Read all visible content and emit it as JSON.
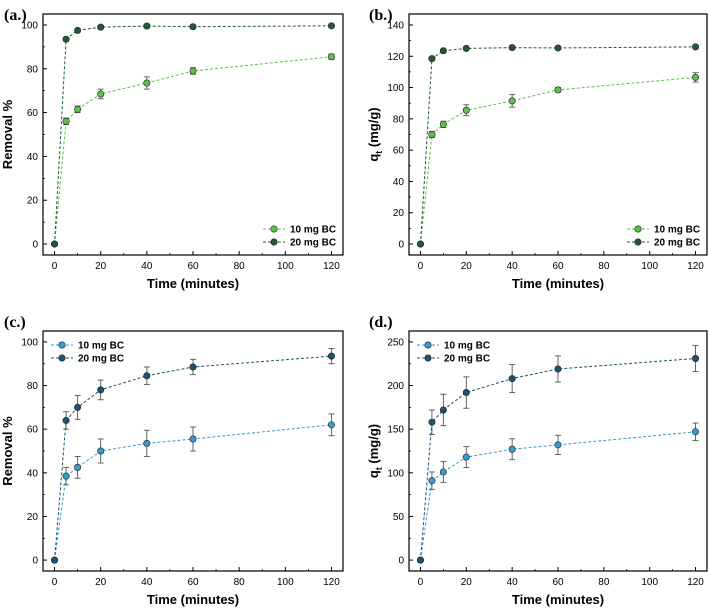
{
  "chart_data": [
    {
      "type": "line",
      "panel_label": "(a.)",
      "xlabel": "Time (minutes)",
      "ylabel": "Removal %",
      "xlim": [
        -5,
        125
      ],
      "ylim": [
        -5,
        105
      ],
      "xticks": [
        0,
        20,
        40,
        60,
        80,
        100,
        120
      ],
      "yticks": [
        0,
        20,
        40,
        60,
        80,
        100
      ],
      "legend_position": "bottom-right",
      "x": [
        0,
        5,
        10,
        20,
        40,
        60,
        120
      ],
      "series": [
        {
          "name": "10 mg BC",
          "color": "#5cc04a",
          "values": [
            0,
            56,
            61.5,
            68.5,
            73.5,
            79,
            85.5
          ],
          "errors": [
            0,
            1.5,
            1.5,
            2.2,
            2.8,
            1.5,
            1.2
          ]
        },
        {
          "name": "20 mg BC",
          "color": "#1f5a33",
          "values": [
            0,
            93.5,
            97.5,
            99,
            99.5,
            99.2,
            99.6
          ],
          "errors": [
            0,
            0.8,
            0.8,
            0.8,
            0.8,
            0.8,
            0.8
          ]
        }
      ]
    },
    {
      "type": "line",
      "panel_label": "(b.)",
      "xlabel": "Time (minutes)",
      "ylabel": "qt (mg/g)",
      "ylabel_main": "q",
      "ylabel_sub": "t",
      "ylabel_rest": " (mg/g)",
      "xlim": [
        -5,
        125
      ],
      "ylim": [
        -7,
        147
      ],
      "xticks": [
        0,
        20,
        40,
        60,
        80,
        100,
        120
      ],
      "yticks": [
        0,
        20,
        40,
        60,
        80,
        100,
        120,
        140
      ],
      "legend_position": "bottom-right",
      "x": [
        0,
        5,
        10,
        20,
        40,
        60,
        120
      ],
      "series": [
        {
          "name": "10 mg BC",
          "color": "#5cc04a",
          "values": [
            0,
            70,
            76.5,
            85.5,
            91.5,
            98.5,
            106.5
          ],
          "errors": [
            0,
            2,
            2,
            3.5,
            4,
            1.5,
            3
          ]
        },
        {
          "name": "20 mg BC",
          "color": "#1f5a33",
          "values": [
            0,
            118.5,
            123.5,
            125,
            125.5,
            125.3,
            126
          ],
          "errors": [
            0,
            1,
            1,
            1,
            1,
            1,
            1
          ]
        }
      ]
    },
    {
      "type": "line",
      "panel_label": "(c.)",
      "xlabel": "Time (minutes)",
      "ylabel": "Removal %",
      "xlim": [
        -5,
        125
      ],
      "ylim": [
        -5,
        105
      ],
      "xticks": [
        0,
        20,
        40,
        60,
        80,
        100,
        120
      ],
      "yticks": [
        0,
        20,
        40,
        60,
        80,
        100
      ],
      "legend_position": "top-left",
      "x": [
        0,
        5,
        10,
        20,
        40,
        60,
        120
      ],
      "series": [
        {
          "name": "10 mg BC",
          "color": "#3a9ad0",
          "values": [
            0,
            38.5,
            42.5,
            50,
            53.5,
            55.5,
            62
          ],
          "errors": [
            0,
            4,
            5,
            5.5,
            6,
            5.5,
            5
          ]
        },
        {
          "name": "20 mg BC",
          "color": "#1a5472",
          "values": [
            0,
            64,
            70,
            78,
            84.5,
            88.5,
            93.5
          ],
          "errors": [
            0,
            4,
            5.5,
            4.5,
            4,
            3.5,
            3.5
          ]
        }
      ]
    },
    {
      "type": "line",
      "panel_label": "(d.)",
      "xlabel": "Time (minutes)",
      "ylabel": "qt (mg/g)",
      "ylabel_main": "q",
      "ylabel_sub": "t",
      "ylabel_rest": " (mg/g)",
      "xlim": [
        -5,
        125
      ],
      "ylim": [
        -12.5,
        262.5
      ],
      "xticks": [
        0,
        20,
        40,
        60,
        80,
        100,
        120
      ],
      "yticks": [
        0,
        50,
        100,
        150,
        200,
        250
      ],
      "legend_position": "top-left",
      "x": [
        0,
        5,
        10,
        20,
        40,
        60,
        120
      ],
      "series": [
        {
          "name": "10 mg BC",
          "color": "#3a9ad0",
          "values": [
            0,
            91,
            101,
            118,
            127,
            132,
            147
          ],
          "errors": [
            0,
            10,
            12,
            12,
            12,
            11,
            10
          ]
        },
        {
          "name": "20 mg BC",
          "color": "#1a5472",
          "values": [
            0,
            158,
            172,
            192,
            208,
            219,
            231
          ],
          "errors": [
            0,
            14,
            18,
            18,
            16,
            15,
            15
          ]
        }
      ]
    }
  ]
}
